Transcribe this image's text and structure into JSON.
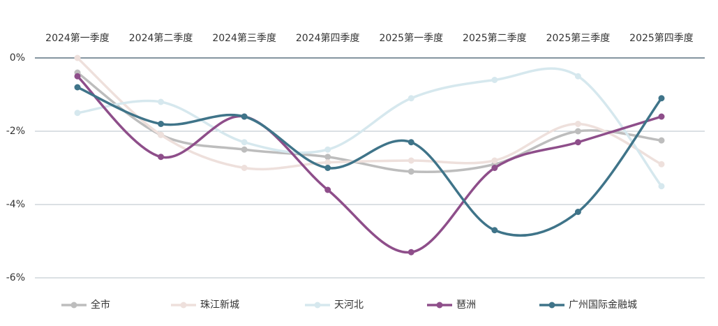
{
  "chart_data": {
    "type": "line",
    "categories": [
      "2024第一季度",
      "2024第二季度",
      "2024第三季度",
      "2024第四季度",
      "2025第一季度",
      "2025第二季度",
      "2025第三季度",
      "2025第四季度"
    ],
    "series": [
      {
        "name": "全市",
        "color": "#bdbdbd",
        "values": [
          -0.4,
          -2.1,
          -2.5,
          -2.7,
          -3.1,
          -2.9,
          -2.0,
          -2.25
        ]
      },
      {
        "name": "珠江新城",
        "color": "#eee0dc",
        "values": [
          0,
          -2.1,
          -3.0,
          -2.85,
          -2.8,
          -2.8,
          -1.8,
          -2.9
        ]
      },
      {
        "name": "天河北",
        "color": "#d6e8ee",
        "values": [
          -1.5,
          -1.2,
          -2.3,
          -2.5,
          -1.1,
          -0.6,
          -0.5,
          -3.5
        ]
      },
      {
        "name": "琶洲",
        "color": "#8e4e8a",
        "values": [
          -0.5,
          -2.7,
          -1.6,
          -3.6,
          -5.3,
          -3.0,
          -2.3,
          -1.6
        ]
      },
      {
        "name": "广州国际金融城",
        "color": "#3f7489",
        "values": [
          -0.8,
          -1.8,
          -1.6,
          -3.0,
          -2.3,
          -4.7,
          -4.2,
          -1.1
        ]
      }
    ],
    "ylim": [
      -6,
      0
    ],
    "yticks": [
      {
        "value": 0,
        "label": "0%"
      },
      {
        "value": -2,
        "label": "-2%"
      },
      {
        "value": -4,
        "label": "-4%"
      },
      {
        "value": -6,
        "label": "-6%"
      }
    ],
    "grid": true
  }
}
